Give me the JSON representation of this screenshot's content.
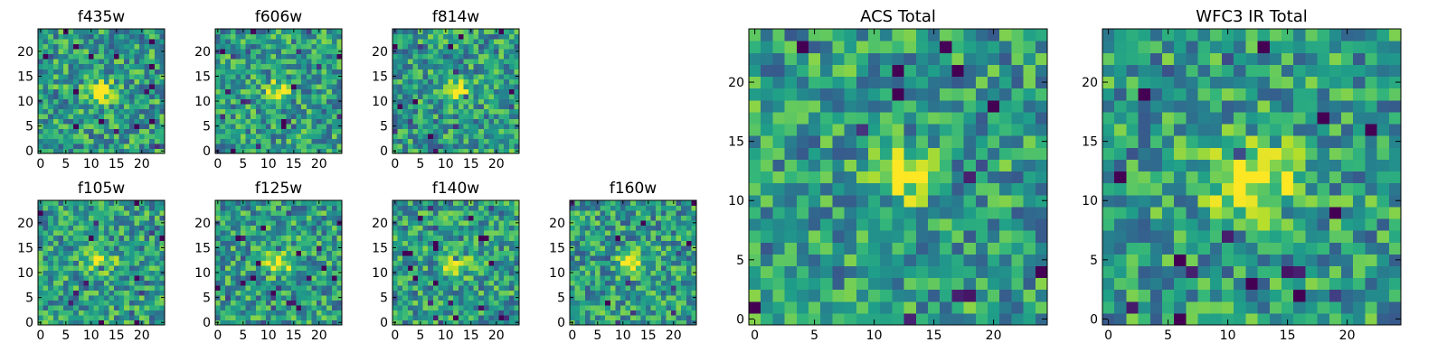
{
  "chart_data": [
    {
      "type": "heatmap",
      "title": "f435w",
      "xlim": [
        0,
        24
      ],
      "ylim": [
        0,
        24
      ],
      "x_ticks": [
        0,
        5,
        10,
        15,
        20
      ],
      "y_ticks": [
        0,
        5,
        10,
        15,
        20
      ],
      "colormap": "viridis",
      "grid": false,
      "source_size": 2,
      "peak_center": [
        12,
        12
      ]
    },
    {
      "type": "heatmap",
      "title": "f606w",
      "xlim": [
        0,
        24
      ],
      "ylim": [
        0,
        24
      ],
      "x_ticks": [
        0,
        5,
        10,
        15,
        20
      ],
      "y_ticks": [
        0,
        5,
        10,
        15,
        20
      ],
      "colormap": "viridis",
      "grid": false,
      "source_size": 2,
      "peak_center": [
        12,
        12
      ]
    },
    {
      "type": "heatmap",
      "title": "f814w",
      "xlim": [
        0,
        24
      ],
      "ylim": [
        0,
        24
      ],
      "x_ticks": [
        0,
        5,
        10,
        15,
        20
      ],
      "y_ticks": [
        0,
        5,
        10,
        15,
        20
      ],
      "colormap": "viridis",
      "grid": false,
      "source_size": 2,
      "peak_center": [
        12,
        12
      ]
    },
    {
      "type": "heatmap",
      "title": "f105w",
      "xlim": [
        0,
        24
      ],
      "ylim": [
        0,
        24
      ],
      "x_ticks": [
        0,
        5,
        10,
        15,
        20
      ],
      "y_ticks": [
        0,
        5,
        10,
        15,
        20
      ],
      "colormap": "viridis",
      "grid": false,
      "source_size": 2,
      "peak_center": [
        12,
        12
      ]
    },
    {
      "type": "heatmap",
      "title": "f125w",
      "xlim": [
        0,
        24
      ],
      "ylim": [
        0,
        24
      ],
      "x_ticks": [
        0,
        5,
        10,
        15,
        20
      ],
      "y_ticks": [
        0,
        5,
        10,
        15,
        20
      ],
      "colormap": "viridis",
      "grid": false,
      "source_size": 2,
      "peak_center": [
        12,
        12
      ]
    },
    {
      "type": "heatmap",
      "title": "f140w",
      "xlim": [
        0,
        24
      ],
      "ylim": [
        0,
        24
      ],
      "x_ticks": [
        0,
        5,
        10,
        15,
        20
      ],
      "y_ticks": [
        0,
        5,
        10,
        15,
        20
      ],
      "colormap": "viridis",
      "grid": false,
      "source_size": 2,
      "peak_center": [
        12,
        12
      ]
    },
    {
      "type": "heatmap",
      "title": "f160w",
      "xlim": [
        0,
        24
      ],
      "ylim": [
        0,
        24
      ],
      "x_ticks": [
        0,
        5,
        10,
        15,
        20
      ],
      "y_ticks": [
        0,
        5,
        10,
        15,
        20
      ],
      "colormap": "viridis",
      "grid": false,
      "source_size": 2,
      "peak_center": [
        12,
        12
      ]
    },
    {
      "type": "heatmap",
      "title": "ACS Total",
      "xlim": [
        0,
        24
      ],
      "ylim": [
        0,
        24
      ],
      "x_ticks": [
        0,
        5,
        10,
        15,
        20
      ],
      "y_ticks": [
        0,
        5,
        10,
        15,
        20
      ],
      "colormap": "viridis",
      "grid": false,
      "source_size": 2,
      "peak_center": [
        12,
        12
      ]
    },
    {
      "type": "heatmap",
      "title": "WFC3 IR Total",
      "xlim": [
        0,
        24
      ],
      "ylim": [
        0,
        24
      ],
      "x_ticks": [
        0,
        5,
        10,
        15,
        20
      ],
      "y_ticks": [
        0,
        5,
        10,
        15,
        20
      ],
      "colormap": "viridis",
      "grid": false,
      "source_size": 3,
      "peak_center": [
        12,
        12
      ]
    }
  ]
}
